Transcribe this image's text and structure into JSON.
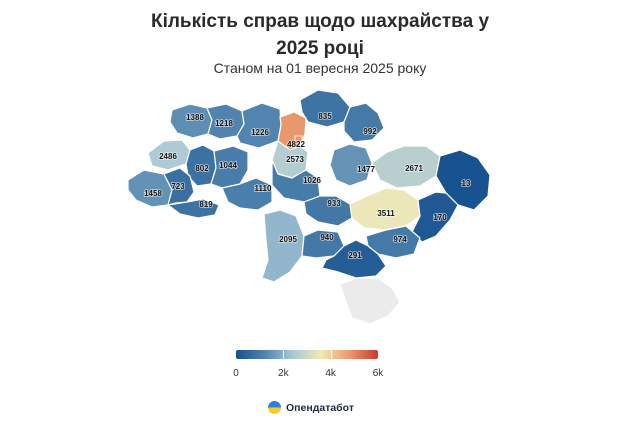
{
  "title_line1": "Кількість справ щодо шахрайства у",
  "title_line2": "2025 році",
  "subtitle": "Станом на 01 вересня 2025 року",
  "brand": {
    "name": "Опендатабот",
    "logo_icon": "opendatabot-logo-icon"
  },
  "chart_data": {
    "type": "choropleth",
    "title": "Кількість справ щодо шахрайства у 2025 році",
    "subtitle": "Станом на 01 вересня 2025 року",
    "color_scale": {
      "min": 0,
      "max": 6000,
      "ticks": [
        {
          "value": 0,
          "label": "0"
        },
        {
          "value": 2000,
          "label": "2k"
        },
        {
          "value": 4000,
          "label": "4k"
        },
        {
          "value": 6000,
          "label": "6k"
        }
      ],
      "stops": [
        "#17518f",
        "#4f83ad",
        "#a9c8d6",
        "#f1e9b6",
        "#e89a6e",
        "#c93a33"
      ]
    },
    "no_data_color": "#ebebeb",
    "regions": [
      {
        "value": 1388
      },
      {
        "value": 1218
      },
      {
        "value": 1226
      },
      {
        "value": 835
      },
      {
        "value": 992
      },
      {
        "value": 4822
      },
      {
        "value": 2573
      },
      {
        "value": 2486
      },
      {
        "value": 802
      },
      {
        "value": 1044
      },
      {
        "value": 1477
      },
      {
        "value": 2671
      },
      {
        "value": 13
      },
      {
        "value": 1458
      },
      {
        "value": 723
      },
      {
        "value": 819
      },
      {
        "value": 1110
      },
      {
        "value": 1026
      },
      {
        "value": 933
      },
      {
        "value": 3511
      },
      {
        "value": 170
      },
      {
        "value": 2095
      },
      {
        "value": 940
      },
      {
        "value": 974
      },
      {
        "value": 291
      },
      {
        "value": null
      }
    ]
  }
}
